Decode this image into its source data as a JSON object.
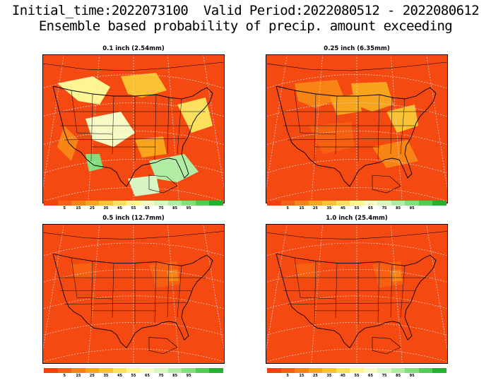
{
  "header": {
    "line1": "Initial_time:2022073100  Valid Period:2022080512 - 2022080612",
    "line2": "Ensemble based probability of precip. amount exceeding"
  },
  "panels": [
    {
      "title": "0.1 inch (2.54mm)",
      "variant": "low"
    },
    {
      "title": "0.25 inch (6.35mm)",
      "variant": "mid"
    },
    {
      "title": "0.5 inch (12.7mm)",
      "variant": "high"
    },
    {
      "title": "1.0 inch (25.4mm)",
      "variant": "high"
    }
  ],
  "colorbar": {
    "colors": [
      "#f4400c",
      "#f66010",
      "#f78414",
      "#f8a41c",
      "#f9c232",
      "#fbe05c",
      "#fdf494",
      "#f6fac4",
      "#d9f5c2",
      "#b0eca2",
      "#82df7c",
      "#52cc55",
      "#26b030"
    ],
    "labels": [
      "5",
      "15",
      "25",
      "35",
      "45",
      "55",
      "65",
      "75",
      "85",
      "95"
    ]
  }
}
